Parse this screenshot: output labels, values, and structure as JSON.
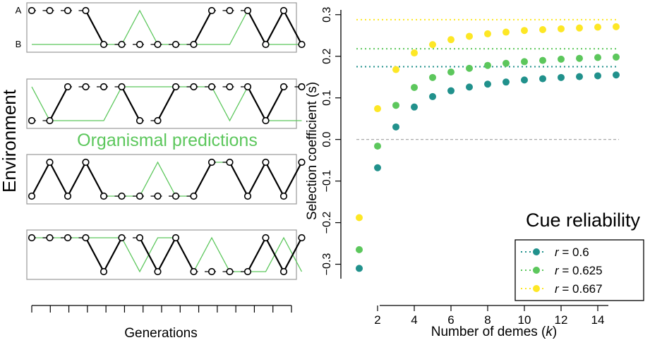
{
  "left_panel": {
    "ylabel": "Environment",
    "xlabel": "Generations",
    "state_labels": [
      "A",
      "B"
    ],
    "prediction_label": "Organismal predictions",
    "env_color": "#000000",
    "prediction_color": "#5CC75C",
    "n_generations": 15,
    "panels": [
      {
        "environment": [
          "A",
          "A",
          "A",
          "A",
          "B",
          "B",
          "B",
          "B",
          "B",
          "B",
          "A",
          "A",
          "A",
          "B",
          "A",
          "B"
        ],
        "predictions": [
          "B",
          "B",
          "B",
          "B",
          "B",
          "B",
          "A",
          "B",
          "B",
          "B",
          "B",
          "B",
          "A",
          "B",
          "B",
          "B"
        ]
      },
      {
        "environment": [
          "B",
          "B",
          "A",
          "A",
          "A",
          "A",
          "B",
          "B",
          "A",
          "A",
          "A",
          "A",
          "A",
          "B",
          "A",
          "A"
        ],
        "predictions": [
          "A",
          "B",
          "B",
          "B",
          "B",
          "A",
          "A",
          "A",
          "A",
          "A",
          "A",
          "B",
          "A",
          "B",
          "B",
          "B"
        ]
      },
      {
        "environment": [
          "B",
          "A",
          "B",
          "A",
          "B",
          "B",
          "B",
          "B",
          "B",
          "B",
          "A",
          "A",
          "B",
          "A",
          "B",
          "A"
        ],
        "predictions": [
          "B",
          "A",
          "B",
          "A",
          "B",
          "B",
          "B",
          "A",
          "B",
          "B",
          "A",
          "A",
          "B",
          "A",
          "B",
          "A"
        ]
      },
      {
        "environment": [
          "A",
          "A",
          "A",
          "A",
          "B",
          "A",
          "A",
          "B",
          "A",
          "B",
          "B",
          "B",
          "B",
          "A",
          "B",
          "A"
        ],
        "predictions": [
          "A",
          "A",
          "A",
          "A",
          "A",
          "A",
          "B",
          "A",
          "A",
          "B",
          "A",
          "B",
          "B",
          "B",
          "A",
          "B"
        ]
      }
    ]
  },
  "chart_data": {
    "type": "scatter",
    "xlabel": "Number of demes (k)",
    "ylabel": "Selection coefficient (s)",
    "xlim": [
      0.5,
      15.5
    ],
    "ylim": [
      -0.35,
      0.32
    ],
    "xticks": [
      2,
      4,
      6,
      8,
      10,
      12,
      14
    ],
    "yticks": [
      -0.3,
      -0.2,
      -0.1,
      0.0,
      0.1,
      0.2,
      0.3
    ],
    "ytick_labels": [
      "−0.3",
      "−0.2",
      "−0.1",
      "0.0",
      "0.1",
      "0.2",
      "0.3"
    ],
    "zero_line_color": "#AAAAAA",
    "legend": {
      "title": "Cue reliability",
      "placement": "bottom-right"
    },
    "x": [
      1,
      2,
      3,
      4,
      5,
      6,
      7,
      8,
      9,
      10,
      11,
      12,
      13,
      14,
      15
    ],
    "series": [
      {
        "name": "r = 0.6",
        "r_value": "0.6",
        "color": "#21918C",
        "asymptote": 0.175,
        "values": [
          -0.31,
          -0.068,
          0.03,
          0.078,
          0.103,
          0.117,
          0.126,
          0.133,
          0.138,
          0.143,
          0.146,
          0.149,
          0.151,
          0.153,
          0.155
        ]
      },
      {
        "name": "r = 0.625",
        "r_value": "0.625",
        "color": "#5CC75C",
        "asymptote": 0.218,
        "values": [
          -0.265,
          -0.016,
          0.082,
          0.125,
          0.149,
          0.162,
          0.171,
          0.178,
          0.183,
          0.187,
          0.19,
          0.193,
          0.195,
          0.197,
          0.198
        ]
      },
      {
        "name": "r = 0.667",
        "r_value": "0.667",
        "color": "#FDE725",
        "asymptote": 0.288,
        "values": [
          -0.188,
          0.074,
          0.168,
          0.208,
          0.228,
          0.24,
          0.248,
          0.254,
          0.258,
          0.262,
          0.264,
          0.266,
          0.268,
          0.27,
          0.271
        ]
      }
    ]
  }
}
